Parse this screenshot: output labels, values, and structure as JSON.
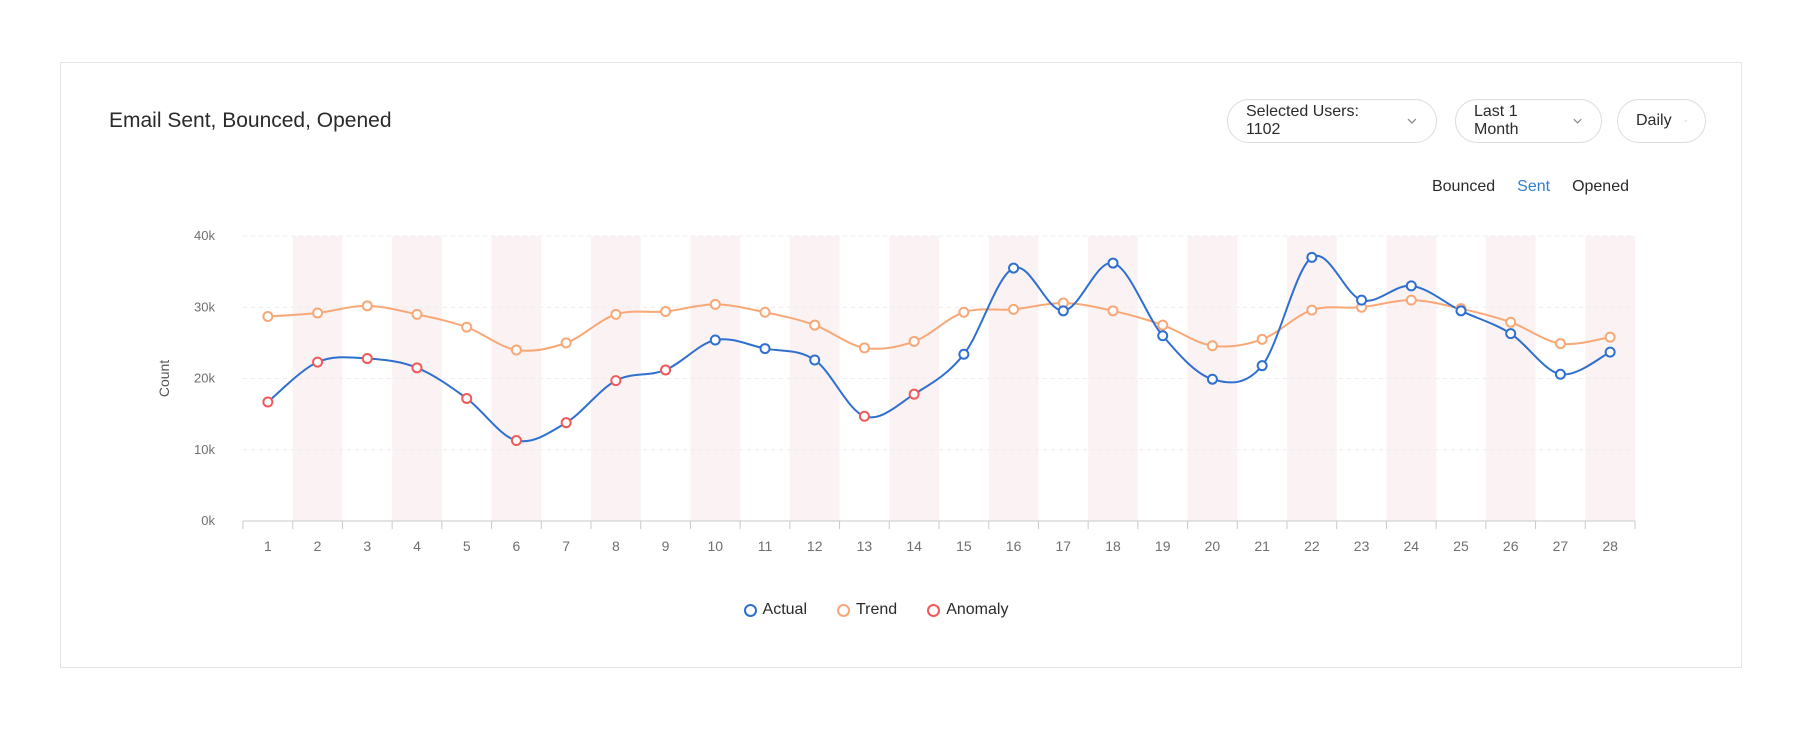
{
  "card": {
    "title": "Email Sent, Bounced, Opened"
  },
  "filters": {
    "users_label": "Selected Users: 1102",
    "range_label": "Last 1 Month",
    "granularity_label": "Daily"
  },
  "tabs": [
    {
      "label": "Bounced",
      "active": false
    },
    {
      "label": "Sent",
      "active": true
    },
    {
      "label": "Opened",
      "active": false
    }
  ],
  "colors": {
    "actual": "#2f6fcf",
    "trend": "#f8a877",
    "anomaly": "#f05a5a",
    "active_tab": "#2f7fd1",
    "band": "#fbf2f3"
  },
  "icons": {
    "dropdown": "chevron-down-icon",
    "legend_marker": "circle-outline-icon"
  },
  "chart_data": {
    "type": "line",
    "ylabel": "Count",
    "xlabel": "",
    "ylim": [
      0,
      40000
    ],
    "yticks": [
      "0k",
      "10k",
      "20k",
      "30k",
      "40k"
    ],
    "ytick_values": [
      0,
      10000,
      20000,
      30000,
      40000
    ],
    "categories": [
      "1",
      "2",
      "3",
      "4",
      "5",
      "6",
      "7",
      "8",
      "9",
      "10",
      "11",
      "12",
      "13",
      "14",
      "15",
      "16",
      "17",
      "18",
      "19",
      "20",
      "21",
      "22",
      "23",
      "24",
      "25",
      "26",
      "27",
      "28"
    ],
    "grid": true,
    "legend_position": "bottom",
    "series": [
      {
        "name": "Actual",
        "values": [
          16700,
          22300,
          22800,
          21500,
          17200,
          11300,
          13800,
          19700,
          21200,
          25400,
          24200,
          22600,
          14700,
          17800,
          23400,
          35500,
          29500,
          36200,
          26000,
          19900,
          21800,
          37000,
          31000,
          33000,
          29500,
          26300,
          20600,
          23700
        ]
      },
      {
        "name": "Trend",
        "values": [
          28700,
          29200,
          30200,
          29000,
          27200,
          24000,
          25000,
          29000,
          29400,
          30400,
          29300,
          27500,
          24300,
          25200,
          29300,
          29700,
          30600,
          29500,
          27500,
          24600,
          25500,
          29600,
          30000,
          31000,
          29800,
          27900,
          24900,
          25800
        ]
      }
    ],
    "anomaly_indices": [
      0,
      1,
      2,
      3,
      4,
      5,
      6,
      7,
      8,
      12,
      13
    ],
    "legend": [
      "Actual",
      "Trend",
      "Anomaly"
    ]
  }
}
